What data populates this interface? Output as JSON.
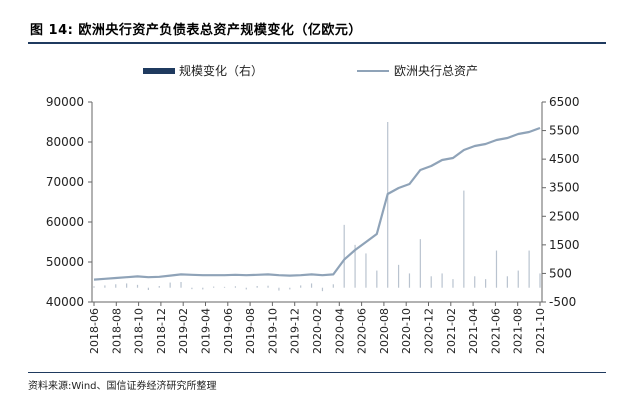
{
  "title": "图 14:  欧洲央行资产负债表总资产规模变化（亿欧元）",
  "source": "资料来源:Wind、国信证券经济研究所整理",
  "colors": {
    "line": "#8fa3b8",
    "bar": "#1f3a5f",
    "rule": "#1f3a5f"
  },
  "chart_data": {
    "type": "line",
    "title": "图 14:  欧洲央行资产负债表总资产规模变化（亿欧元）",
    "x_tick_labels": [
      "2018-06",
      "2018-08",
      "2018-10",
      "2018-12",
      "2019-02",
      "2019-04",
      "2019-06",
      "2019-08",
      "2019-10",
      "2019-12",
      "2020-02",
      "2020-04",
      "2020-06",
      "2020-08",
      "2020-10",
      "2020-12",
      "2021-02",
      "2021-04",
      "2021-06",
      "2021-08",
      "2021-10"
    ],
    "ylim_left": [
      40000,
      90000
    ],
    "yticks_left": [
      "40000",
      "50000",
      "60000",
      "70000",
      "80000",
      "90000"
    ],
    "ylim_right": [
      -500,
      6500
    ],
    "yticks_right": [
      "-500",
      "500",
      "1500",
      "2500",
      "3500",
      "4500",
      "5500",
      "6500"
    ],
    "legend_position": "top",
    "series": [
      {
        "name": "欧洲央行总资产",
        "axis": "left",
        "type": "line",
        "x": [
          0,
          1,
          2,
          3,
          4,
          5,
          6,
          7,
          8,
          9,
          10,
          11,
          12,
          13,
          14,
          15,
          16,
          17,
          18,
          19,
          20,
          21,
          22,
          23,
          24,
          25,
          26,
          27,
          28,
          29,
          30,
          31,
          32,
          33,
          34,
          35,
          36,
          37,
          38,
          39,
          40,
          41
        ],
        "values": [
          45600,
          45800,
          46000,
          46200,
          46400,
          46200,
          46300,
          46600,
          46900,
          46800,
          46700,
          46700,
          46700,
          46800,
          46700,
          46800,
          46900,
          46700,
          46600,
          46700,
          46900,
          46700,
          46900,
          50600,
          53000,
          55000,
          57000,
          67000,
          68500,
          69500,
          73000,
          74000,
          75500,
          76000,
          78000,
          79000,
          79500,
          80500,
          81000,
          82000,
          82500,
          83500
        ]
      },
      {
        "name": "规模变化（右）",
        "axis": "right",
        "type": "bar",
        "x": [
          0,
          1,
          2,
          3,
          4,
          5,
          6,
          7,
          8,
          9,
          10,
          11,
          12,
          13,
          14,
          15,
          16,
          17,
          18,
          19,
          20,
          21,
          22,
          23,
          24,
          25,
          26,
          27,
          28,
          29,
          30,
          31,
          32,
          33,
          34,
          35,
          36,
          37,
          38,
          39,
          40,
          41
        ],
        "values": [
          50,
          80,
          120,
          150,
          100,
          -80,
          60,
          180,
          200,
          -50,
          -60,
          40,
          30,
          50,
          -60,
          60,
          70,
          -100,
          -60,
          80,
          150,
          -120,
          120,
          2200,
          1500,
          1200,
          600,
          5800,
          800,
          500,
          1700,
          400,
          500,
          300,
          3400,
          400,
          300,
          1300,
          400,
          600,
          1300,
          500
        ]
      }
    ]
  }
}
